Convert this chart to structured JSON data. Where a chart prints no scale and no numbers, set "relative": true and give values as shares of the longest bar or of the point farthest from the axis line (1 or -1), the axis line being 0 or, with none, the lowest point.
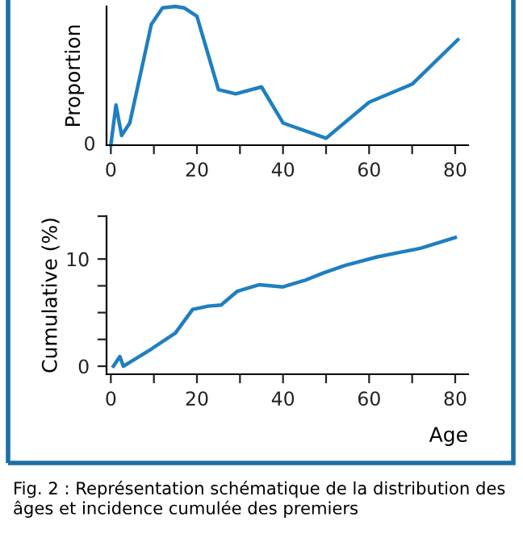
{
  "chart_data": [
    {
      "type": "line",
      "ylabel": "Proportion",
      "relative": true,
      "color": "#1f7fc0",
      "x": [
        0,
        1.2,
        2.5,
        4.4,
        9.4,
        12,
        15,
        17,
        20,
        25,
        29,
        35,
        40,
        50,
        60,
        70,
        80.6
      ],
      "values": [
        0,
        0.29,
        0.07,
        0.16,
        0.87,
        0.99,
        1,
        0.99,
        0.93,
        0.4,
        0.37,
        0.42,
        0.16,
        0.05,
        0.31,
        0.44,
        0.76
      ],
      "xlim": [
        -1,
        83
      ],
      "xticks": [
        0,
        {
          "value": 10,
          "label": null
        },
        20,
        {
          "value": 30,
          "label": null
        },
        40,
        {
          "value": 50,
          "label": null
        },
        60,
        {
          "value": 70,
          "label": null
        },
        80
      ],
      "annotations": [
        "0"
      ],
      "grid": false,
      "marker": "none"
    },
    {
      "type": "line",
      "ylabel": "Cumulative (%)",
      "xlabel": "Age",
      "color": "#1f7fc0",
      "x": [
        0.6,
        2.1,
        2.9,
        9.4,
        15,
        19,
        22.5,
        25.6,
        29.4,
        34.4,
        40,
        45,
        49.4,
        54.4,
        61.9,
        66.9,
        71.9,
        80
      ],
      "values": [
        0,
        0.9,
        0,
        1.6,
        3.1,
        5.3,
        5.6,
        5.7,
        7.0,
        7.6,
        7.4,
        8.0,
        8.7,
        9.4,
        10.2,
        10.6,
        11.0,
        12.0
      ],
      "xlim": [
        -1,
        83
      ],
      "xticks": [
        0,
        {
          "value": 10,
          "label": null
        },
        20,
        {
          "value": 30,
          "label": null
        },
        40,
        {
          "value": 50,
          "label": null
        },
        60,
        {
          "value": 70,
          "label": null
        },
        80
      ],
      "ylim": [
        -0.75,
        14
      ],
      "yticks": [
        0,
        {
          "value": 2.5,
          "label": null
        },
        {
          "value": 5,
          "label": null
        },
        {
          "value": 7.5,
          "label": null
        },
        10,
        {
          "value": 14,
          "label": null
        }
      ],
      "annotations": [
        "Fig. 2 : Représentation schématique de la distribution des âges et incidence cumulée des premiers"
      ],
      "grid": false,
      "marker": "none"
    }
  ]
}
